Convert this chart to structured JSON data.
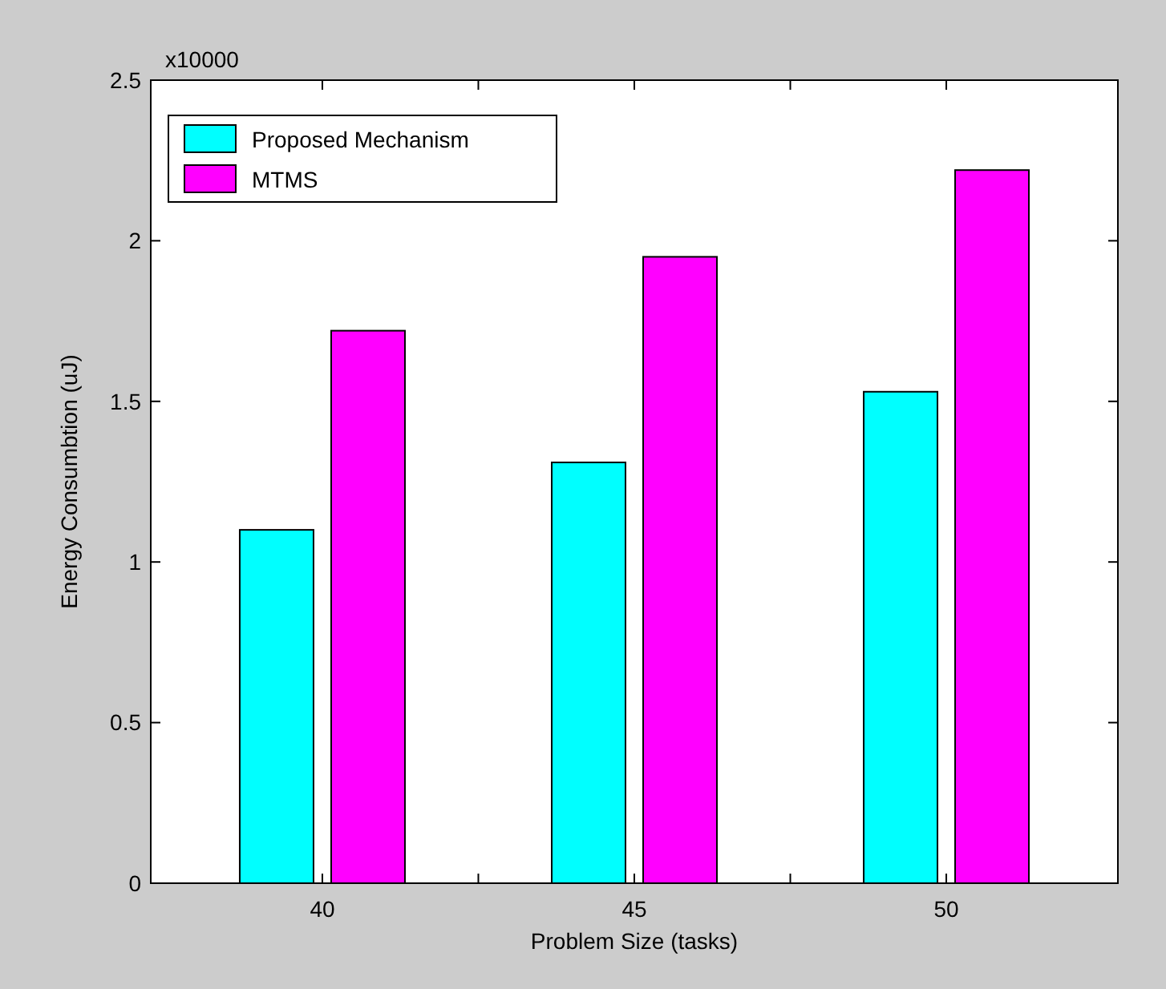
{
  "chart_data": {
    "type": "bar",
    "xlabel": "Problem Size (tasks)",
    "ylabel": "Energy Consumbtion (uJ)",
    "annotations": [
      "x10000"
    ],
    "categories": [
      "40",
      "45",
      "50"
    ],
    "series": [
      {
        "name": "Proposed Mechanism",
        "color": "#00ffff",
        "values": [
          1.1,
          1.31,
          1.53
        ]
      },
      {
        "name": "MTMS",
        "color": "#ff00ff",
        "values": [
          1.72,
          1.95,
          2.22
        ]
      }
    ],
    "ylim": [
      0,
      2.5
    ],
    "yticks": [
      0,
      0.5,
      1,
      1.5,
      2,
      2.5
    ],
    "grid": false,
    "legend": "top left"
  }
}
